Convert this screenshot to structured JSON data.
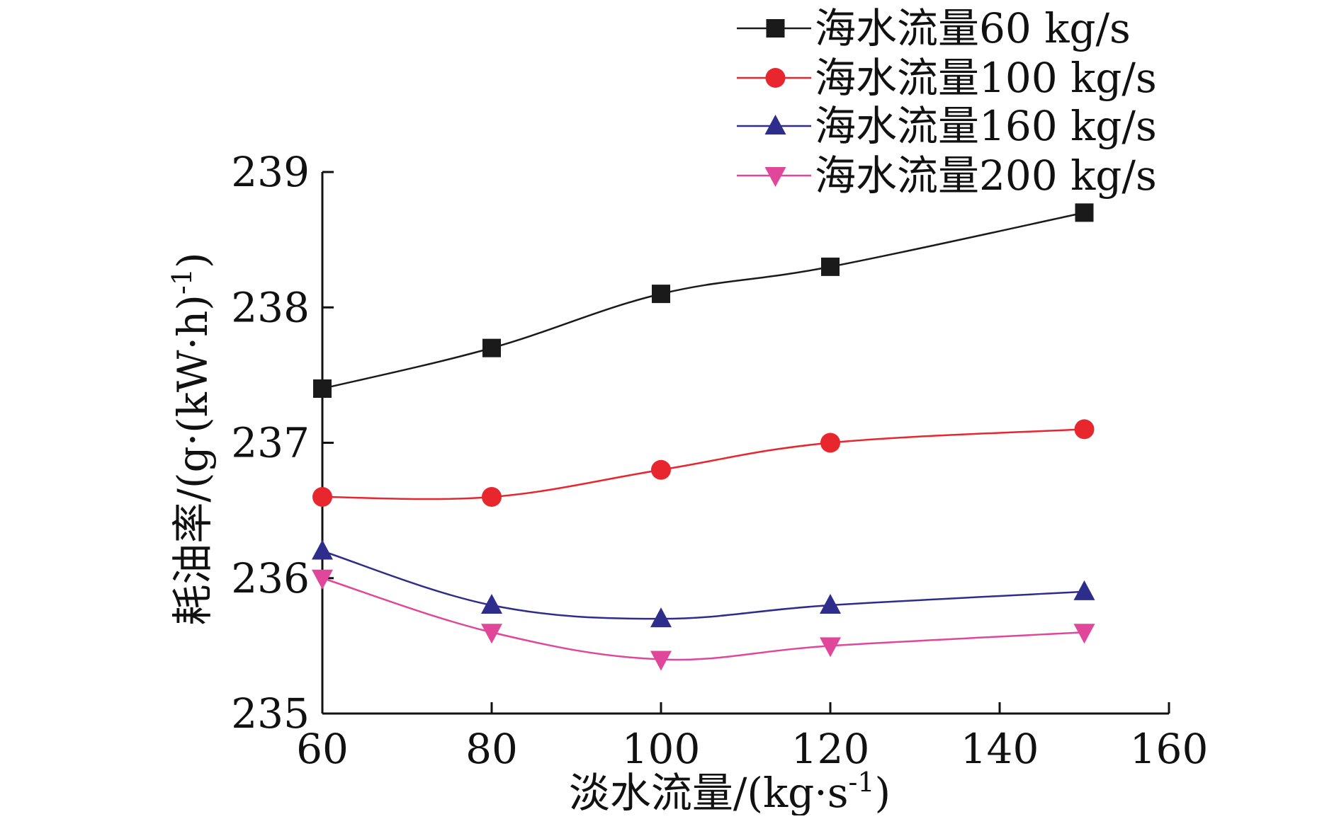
{
  "chart_data": {
    "type": "line",
    "title": "",
    "xlabel": "淡水流量/(kg·s",
    "xlabel_sup": "-1",
    "xlabel_tail": ")",
    "ylabel": "耗油率/(g·(kW·h)",
    "ylabel_sup": "-1",
    "ylabel_tail": ")",
    "xlim": [
      60,
      160
    ],
    "ylim": [
      235,
      239
    ],
    "x_ticks": [
      60,
      80,
      100,
      120,
      140,
      160
    ],
    "y_ticks": [
      235,
      236,
      237,
      238,
      239
    ],
    "x_tick_labels": [
      "60",
      "80",
      "100",
      "120",
      "140",
      "160"
    ],
    "y_tick_labels": [
      "235",
      "236",
      "237",
      "238",
      "239"
    ],
    "x": [
      60,
      80,
      100,
      120,
      150
    ],
    "legend_position": "top-right",
    "series": [
      {
        "name": "海水流量60 kg/s",
        "marker": "square",
        "color": "#1a1a1a",
        "values": [
          237.4,
          237.7,
          238.1,
          238.3,
          238.7
        ]
      },
      {
        "name": "海水流量100 kg/s",
        "marker": "circle",
        "color": "#e8262e",
        "values": [
          236.6,
          236.6,
          236.8,
          237.0,
          237.1
        ]
      },
      {
        "name": "海水流量160 kg/s",
        "marker": "triangle-up",
        "color": "#2e2d8c",
        "values": [
          236.2,
          235.8,
          235.7,
          235.8,
          235.9
        ]
      },
      {
        "name": "海水流量200 kg/s",
        "marker": "triangle-down",
        "color": "#e0479a",
        "values": [
          236.0,
          235.6,
          235.4,
          235.5,
          235.6
        ]
      }
    ]
  }
}
